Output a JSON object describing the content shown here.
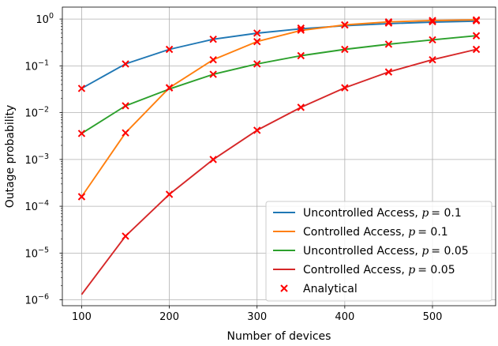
{
  "chart_data": {
    "type": "line",
    "xlabel": "Number of devices",
    "ylabel": "Outage probability",
    "yscale": "log",
    "xlim": [
      78,
      572
    ],
    "ylim": [
      7.5e-07,
      1.8
    ],
    "grid": true,
    "legend_position": "lower-right",
    "x_ticks": [
      100,
      200,
      300,
      400,
      500
    ],
    "y_ticks": [
      {
        "value": 1e-06,
        "mantissa": "10",
        "exp": "−6"
      },
      {
        "value": 1e-05,
        "mantissa": "10",
        "exp": "−5"
      },
      {
        "value": 0.0001,
        "mantissa": "10",
        "exp": "−4"
      },
      {
        "value": 0.001,
        "mantissa": "10",
        "exp": "−3"
      },
      {
        "value": 0.01,
        "mantissa": "10",
        "exp": "−2"
      },
      {
        "value": 0.1,
        "mantissa": "10",
        "exp": "−1"
      },
      {
        "value": 1,
        "mantissa": "10",
        "exp": "0"
      }
    ],
    "x": [
      100,
      150,
      200,
      250,
      300,
      350,
      400,
      450,
      500,
      550
    ],
    "series": [
      {
        "name": "Uncontrolled Access, ",
        "param": "p",
        "param_value": "= 0.1",
        "color": "#1f77b4",
        "line": [
          0.033,
          0.11,
          0.225,
          0.37,
          0.5,
          0.62,
          0.72,
          0.8,
          0.86,
          0.9
        ],
        "analytical": [
          0.033,
          0.11,
          0.225,
          0.37,
          0.5,
          0.64,
          0.75,
          0.82,
          0.88,
          0.92
        ]
      },
      {
        "name": "Controlled Access, ",
        "param": "p",
        "param_value": "= 0.1",
        "color": "#ff7f0e",
        "line": [
          0.00016,
          0.0037,
          0.034,
          0.135,
          0.33,
          0.57,
          0.75,
          0.87,
          0.93,
          0.96
        ],
        "analytical": [
          0.00016,
          0.0037,
          0.034,
          0.135,
          0.33,
          0.58,
          0.75,
          0.87,
          0.93,
          0.96
        ]
      },
      {
        "name": "Uncontrolled Access, ",
        "param": "p",
        "param_value": "= 0.05",
        "color": "#2ca02c",
        "line": [
          0.0036,
          0.014,
          0.032,
          0.066,
          0.11,
          0.165,
          0.225,
          0.29,
          0.36,
          0.44
        ],
        "analytical": [
          0.0036,
          0.014,
          0.034,
          0.066,
          0.11,
          0.165,
          0.225,
          0.29,
          0.36,
          0.44
        ]
      },
      {
        "name": "Controlled Access, ",
        "param": "p",
        "param_value": "= 0.05",
        "color": "#d62728",
        "line": [
          1.3e-06,
          2.3e-05,
          0.00018,
          0.001,
          0.0042,
          0.013,
          0.034,
          0.074,
          0.135,
          0.225
        ],
        "analytical": [
          null,
          2.3e-05,
          0.00018,
          0.001,
          0.0042,
          0.013,
          0.034,
          0.074,
          0.135,
          0.225
        ]
      }
    ],
    "analytical_legend": "Analytical",
    "analytical_color": "#ff0000"
  }
}
